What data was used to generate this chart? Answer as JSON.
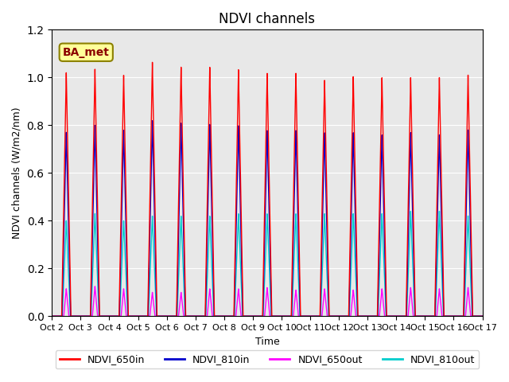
{
  "title": "NDVI channels",
  "ylabel": "NDVI channels (W/m2/nm)",
  "xlabel": "Time",
  "ylim": [
    0,
    1.2
  ],
  "yticks": [
    0.0,
    0.2,
    0.4,
    0.6,
    0.8,
    1.0,
    1.2
  ],
  "background_color": "#e8e8e8",
  "annotation_text": "BA_met",
  "annotation_box_color": "#ffff99",
  "annotation_box_edge": "#8B8000",
  "colors": {
    "NDVI_650in": "#ff0000",
    "NDVI_810in": "#0000cc",
    "NDVI_650out": "#ff00ff",
    "NDVI_810out": "#00cccc"
  },
  "num_cycles": 15,
  "cycle_period": 1.0,
  "x_tick_labels": [
    "Oct 2",
    "Oct 3",
    "Oct 4",
    "Oct 5",
    "Oct 6",
    "Oct 7",
    "Oct 8",
    "Oct 9",
    "Oct 10",
    "Oct 11",
    "Oct 12",
    "Oct 13",
    "Oct 14",
    "Oct 15",
    "Oct 16",
    "Oct 17"
  ],
  "peak_heights_650in": [
    1.02,
    1.035,
    1.01,
    1.065,
    1.045,
    1.045,
    1.035,
    1.02,
    1.02,
    0.99,
    1.005,
    1.0,
    1.0,
    1.0,
    1.01
  ],
  "peak_heights_810in": [
    0.77,
    0.8,
    0.78,
    0.82,
    0.81,
    0.805,
    0.8,
    0.78,
    0.78,
    0.77,
    0.77,
    0.76,
    0.77,
    0.76,
    0.78
  ],
  "peak_heights_650out": [
    0.115,
    0.125,
    0.115,
    0.1,
    0.1,
    0.115,
    0.115,
    0.12,
    0.11,
    0.115,
    0.11,
    0.115,
    0.12,
    0.115,
    0.12
  ],
  "peak_heights_810out": [
    0.4,
    0.43,
    0.4,
    0.42,
    0.42,
    0.42,
    0.43,
    0.43,
    0.43,
    0.43,
    0.43,
    0.43,
    0.44,
    0.44,
    0.42
  ],
  "pw_650in": 0.32,
  "pw_810in": 0.3,
  "pw_650out": 0.18,
  "pw_810out": 0.28
}
